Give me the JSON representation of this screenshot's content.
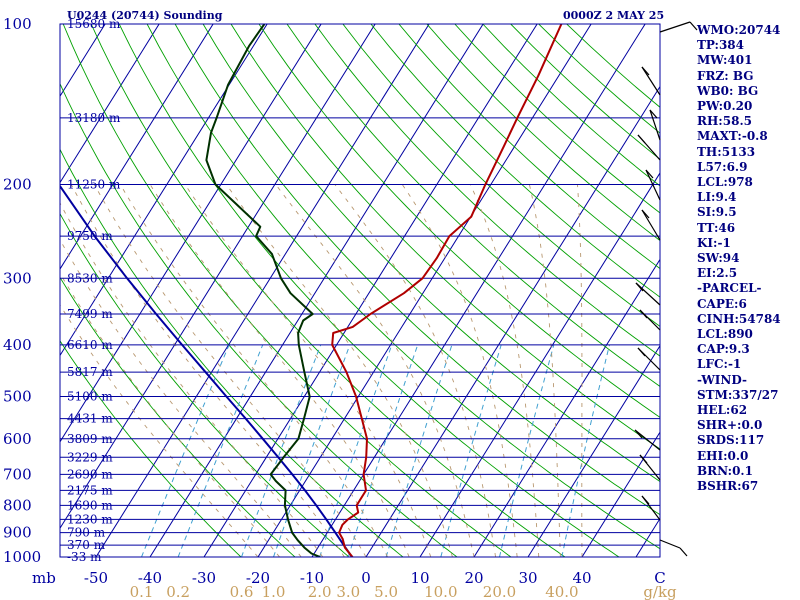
{
  "header": {
    "station": "U0244 (20744) Sounding",
    "time": "0000Z  2 MAY 25"
  },
  "indices": [
    "WMO:20744",
    "TP:384",
    "MW:401",
    "FRZ: BG",
    "WB0: BG",
    "PW:0.20",
    "RH:58.5",
    "MAXT:-0.8",
    "TH:5133",
    "L57:6.9",
    "LCL:978",
    "LI:9.4",
    "SI:9.5",
    "TT:46",
    "KI:-1",
    "SW:94",
    "EI:2.5",
    "-PARCEL-",
    "CAPE:6",
    "CINH:54784",
    "LCL:890",
    "CAP:9.3",
    "LFC:-1",
    "-WIND-",
    "STM:337/27",
    "HEL:62",
    "SHR+:0.0",
    "SRDS:117",
    "EHI:0.0",
    "BRN:0.1",
    "BSHR:67"
  ],
  "chart_data": {
    "type": "line",
    "subtype": "skew-T log-P sounding",
    "ylabel": "mb",
    "xlabel": "C",
    "mixing_ratio_unit": "g/kg",
    "ylim": [
      1000,
      100
    ],
    "xlim": [
      -50,
      50
    ],
    "y_log_scale": true,
    "pressure_ticks": [
      100,
      200,
      300,
      400,
      500,
      600,
      700,
      800,
      900,
      1000
    ],
    "pressure_tick_labels": [
      "100",
      "200",
      "300",
      "400",
      "500",
      "600",
      "700",
      "800",
      "900",
      "1000"
    ],
    "temperature_ticks": [
      -50,
      -40,
      -30,
      -20,
      -10,
      0,
      10,
      20,
      30,
      40
    ],
    "temperature_tick_labels": [
      "-50",
      "-40",
      "-30",
      "-20",
      "-10",
      "0",
      "10",
      "20",
      "30",
      "40"
    ],
    "mixing_ratio_labels": [
      "0.1",
      "0.2",
      "0.6",
      "1.0",
      "2.0",
      "3.0",
      "5.0",
      "10.0",
      "20.0",
      "40.0"
    ],
    "height_levels": [
      {
        "p": 100,
        "label": "15680 m"
      },
      {
        "p": 150,
        "label": "13180 m"
      },
      {
        "p": 200,
        "label": "11250 m"
      },
      {
        "p": 250,
        "label": "9750 m"
      },
      {
        "p": 300,
        "label": "8530 m"
      },
      {
        "p": 350,
        "label": "7499 m"
      },
      {
        "p": 400,
        "label": "6610 m"
      },
      {
        "p": 450,
        "label": "5817 m"
      },
      {
        "p": 500,
        "label": "5100 m"
      },
      {
        "p": 550,
        "label": "4431 m"
      },
      {
        "p": 600,
        "label": "3809 m"
      },
      {
        "p": 650,
        "label": "3229 m"
      },
      {
        "p": 700,
        "label": "2690 m"
      },
      {
        "p": 750,
        "label": "2175 m"
      },
      {
        "p": 800,
        "label": "1690 m"
      },
      {
        "p": 850,
        "label": "1230 m"
      },
      {
        "p": 900,
        "label": "790 m"
      },
      {
        "p": 950,
        "label": "370 m"
      },
      {
        "p": 1000,
        "label": "-33 m"
      }
    ],
    "series": [
      {
        "role": "parcel",
        "color": "#0000a0",
        "points": [
          [
            1000,
            -2.6
          ],
          [
            950,
            -5.5
          ],
          [
            900,
            -8.5
          ],
          [
            850,
            -11.7
          ],
          [
            800,
            -15.2
          ],
          [
            750,
            -19.0
          ],
          [
            700,
            -23.2
          ],
          [
            650,
            -27.8
          ],
          [
            600,
            -32.8
          ],
          [
            550,
            -38.3
          ],
          [
            500,
            -44.4
          ],
          [
            450,
            -51.1
          ],
          [
            400,
            -58.6
          ],
          [
            350,
            -67.0
          ],
          [
            300,
            -76.5
          ],
          [
            250,
            -87.4
          ],
          [
            200,
            -100.0
          ],
          [
            150,
            -114.8
          ],
          [
            130,
            -121.6
          ]
        ]
      },
      {
        "role": "temperature",
        "color": "#b00000",
        "points": [
          [
            1000,
            -2.5
          ],
          [
            960,
            -5.0
          ],
          [
            925,
            -6.4
          ],
          [
            900,
            -7.8
          ],
          [
            870,
            -8.1
          ],
          [
            850,
            -7.7
          ],
          [
            825,
            -6.6
          ],
          [
            800,
            -7.7
          ],
          [
            750,
            -7.7
          ],
          [
            700,
            -10.0
          ],
          [
            650,
            -11.5
          ],
          [
            600,
            -13.5
          ],
          [
            550,
            -16.8
          ],
          [
            500,
            -20.4
          ],
          [
            450,
            -25.0
          ],
          [
            400,
            -30.8
          ],
          [
            380,
            -32.0
          ],
          [
            370,
            -29.1
          ],
          [
            350,
            -27.3
          ],
          [
            320,
            -23.5
          ],
          [
            300,
            -21.8
          ],
          [
            275,
            -21.5
          ],
          [
            250,
            -21.7
          ],
          [
            230,
            -19.9
          ],
          [
            200,
            -21.0
          ],
          [
            170,
            -22.0
          ],
          [
            150,
            -22.8
          ],
          [
            125,
            -23.8
          ],
          [
            100,
            -25.5
          ]
        ]
      },
      {
        "role": "dewpoint",
        "color": "#003000",
        "points": [
          [
            1000,
            -8.5
          ],
          [
            985,
            -10.5
          ],
          [
            960,
            -12.5
          ],
          [
            930,
            -14.6
          ],
          [
            900,
            -16.5
          ],
          [
            850,
            -18.8
          ],
          [
            800,
            -21.0
          ],
          [
            750,
            -22.6
          ],
          [
            720,
            -25.5
          ],
          [
            700,
            -27.2
          ],
          [
            650,
            -26.8
          ],
          [
            600,
            -26.2
          ],
          [
            550,
            -27.5
          ],
          [
            500,
            -29.0
          ],
          [
            450,
            -32.8
          ],
          [
            400,
            -37.0
          ],
          [
            380,
            -38.5
          ],
          [
            360,
            -39.0
          ],
          [
            350,
            -38.0
          ],
          [
            320,
            -44.5
          ],
          [
            300,
            -48.0
          ],
          [
            270,
            -52.5
          ],
          [
            250,
            -57.5
          ],
          [
            240,
            -57.8
          ],
          [
            200,
            -71.0
          ],
          [
            180,
            -75.5
          ],
          [
            160,
            -77.8
          ],
          [
            150,
            -78.5
          ],
          [
            130,
            -80.2
          ],
          [
            110,
            -80.8
          ],
          [
            100,
            -80.5
          ]
        ]
      }
    ]
  }
}
